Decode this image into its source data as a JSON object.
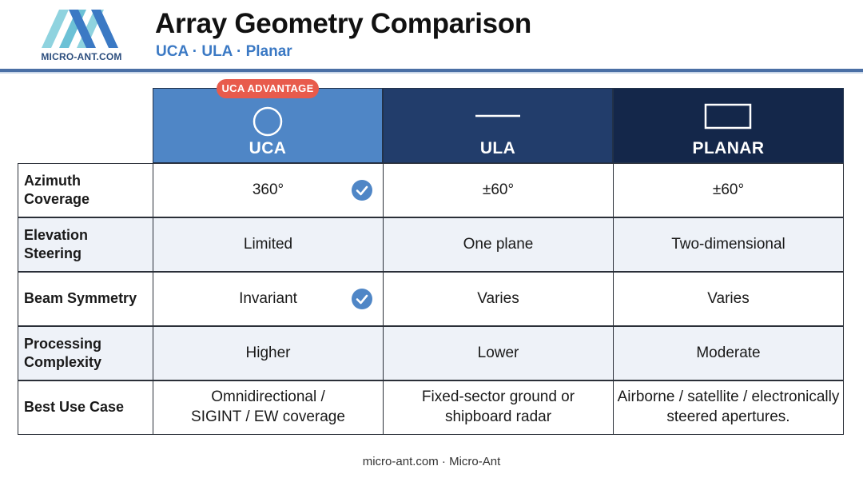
{
  "header": {
    "logo_text": "MICRO-ANT.COM",
    "title": "Array Geometry Comparison",
    "subtitle": "UCA · ULA · Planar"
  },
  "badge": "UCA ADVANTAGE",
  "columns": [
    {
      "key": "uca",
      "label": "UCA",
      "icon": "circle-icon",
      "color": "#4f86c6"
    },
    {
      "key": "ula",
      "label": "ULA",
      "icon": "line-icon",
      "color": "#223d6b"
    },
    {
      "key": "planar",
      "label": "PLANAR",
      "icon": "rectangle-icon",
      "color": "#14274a"
    }
  ],
  "rows": [
    {
      "label": "Azimuth Coverage",
      "uca": "360°",
      "ula": "±60°",
      "planar": "±60°",
      "uca_check": true
    },
    {
      "label": "Elevation Steering",
      "uca": "Limited",
      "ula": "One plane",
      "planar": "Two-dimensional",
      "uca_check": false
    },
    {
      "label": "Beam Symmetry",
      "uca": "Invariant",
      "ula": "Varies",
      "planar": "Varies",
      "uca_check": true
    },
    {
      "label": "Processing Complexity",
      "uca": "Higher",
      "ula": "Lower",
      "planar": "Moderate",
      "uca_check": false
    },
    {
      "label": "Best Use Case",
      "uca": "Omnidirectional / SIGINT / EW coverage",
      "ula": "Fixed-sector ground or shipboard radar",
      "planar": "Airborne / satellite / electronically steered apertures.",
      "uca_check": false
    }
  ],
  "footer": "micro-ant.com · Micro-Ant"
}
